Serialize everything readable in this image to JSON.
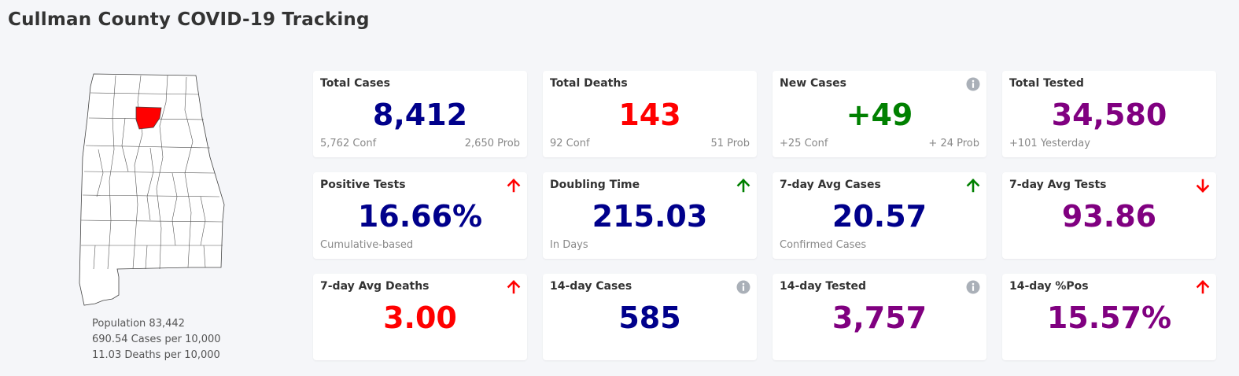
{
  "page": {
    "title": "Cullman County COVID-19 Tracking"
  },
  "map": {
    "highlight_color": "#ff0000"
  },
  "stats": [
    "Population 83,442",
    "690.54 Cases per 10,000",
    "11.03 Deaths per 10,000"
  ],
  "cards": [
    {
      "title": "Total Cases",
      "value": "8,412",
      "value_color": "#00008b",
      "foot_left": "5,762 Conf",
      "foot_right": "2,650 Prob",
      "icon": ""
    },
    {
      "title": "Total Deaths",
      "value": "143",
      "value_color": "#ff0000",
      "foot_left": "92 Conf",
      "foot_right": "51 Prob",
      "icon": ""
    },
    {
      "title": "New Cases",
      "value": "+49",
      "value_color": "#008000",
      "foot_left": "+25 Conf",
      "foot_right": "+ 24 Prob",
      "icon": "info-icon"
    },
    {
      "title": "Total Tested",
      "value": "34,580",
      "value_color": "#800080",
      "foot_left": "+101 Yesterday",
      "foot_right": "",
      "icon": ""
    },
    {
      "title": "Positive Tests",
      "value": "16.66%",
      "value_color": "#00008b",
      "foot_left": "Cumulative-based",
      "foot_right": "",
      "icon": "arrow-up-icon",
      "icon_color": "#ff0000"
    },
    {
      "title": "Doubling Time",
      "value": "215.03",
      "value_color": "#00008b",
      "foot_left": "In Days",
      "foot_right": "",
      "icon": "arrow-up-icon",
      "icon_color": "#008000"
    },
    {
      "title": "7-day Avg Cases",
      "value": "20.57",
      "value_color": "#00008b",
      "foot_left": "Confirmed Cases",
      "foot_right": "",
      "icon": "arrow-up-icon",
      "icon_color": "#008000"
    },
    {
      "title": "7-day Avg Tests",
      "value": "93.86",
      "value_color": "#800080",
      "foot_left": "",
      "foot_right": "",
      "icon": "arrow-down-icon",
      "icon_color": "#ff0000"
    },
    {
      "title": "7-day Avg Deaths",
      "value": "3.00",
      "value_color": "#ff0000",
      "foot_left": "",
      "foot_right": "",
      "icon": "arrow-up-icon",
      "icon_color": "#ff0000"
    },
    {
      "title": "14-day Cases",
      "value": "585",
      "value_color": "#00008b",
      "foot_left": "",
      "foot_right": "",
      "icon": "info-icon"
    },
    {
      "title": "14-day Tested",
      "value": "3,757",
      "value_color": "#800080",
      "foot_left": "",
      "foot_right": "",
      "icon": "info-icon"
    },
    {
      "title": "14-day %Pos",
      "value": "15.57%",
      "value_color": "#800080",
      "foot_left": "",
      "foot_right": "",
      "icon": "arrow-up-icon",
      "icon_color": "#ff0000"
    }
  ]
}
